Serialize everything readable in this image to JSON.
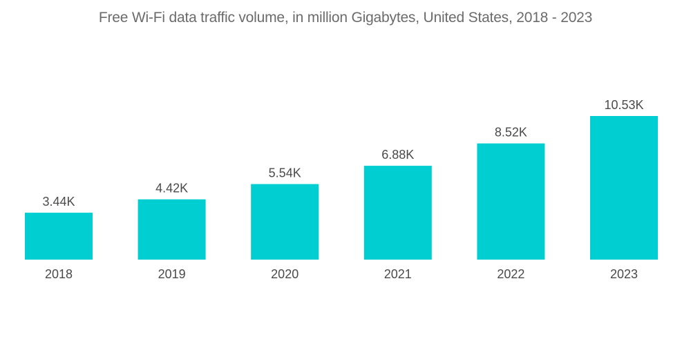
{
  "chart_data": {
    "type": "bar",
    "title": "Free Wi-Fi data traffic volume, in million Gigabytes, United States, 2018 - 2023",
    "xlabel": "",
    "ylabel": "",
    "categories": [
      "2018",
      "2019",
      "2020",
      "2021",
      "2022",
      "2023"
    ],
    "values": [
      3.44,
      4.42,
      5.54,
      6.88,
      8.52,
      10.53
    ],
    "value_labels": [
      "3.44K",
      "4.42K",
      "5.54K",
      "6.88K",
      "8.52K",
      "10.53K"
    ],
    "units": "thousand (million Gigabytes)",
    "ylim": [
      0,
      10.53
    ],
    "grid": false,
    "legend": "none",
    "bar_color": "#00ced1"
  }
}
